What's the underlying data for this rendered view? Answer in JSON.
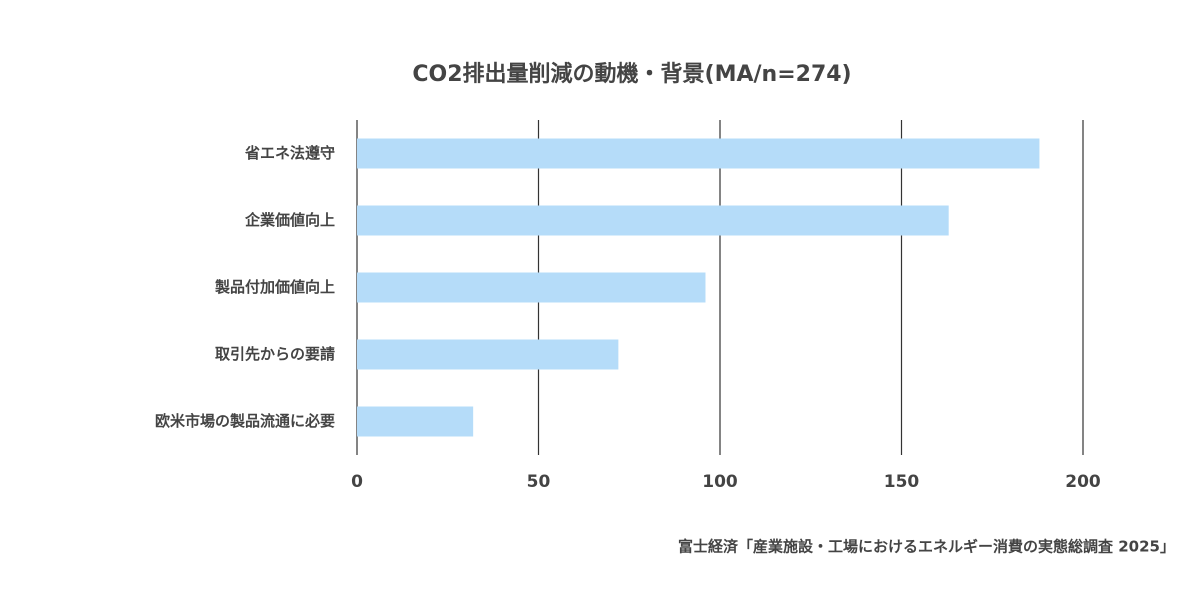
{
  "chart_data": {
    "type": "bar",
    "orientation": "horizontal",
    "title": "CO2排出量削減の動機・背景(MA/n=274)",
    "categories": [
      "省エネ法遵守",
      "企業価値向上",
      "製品付加価値向上",
      "取引先からの要請",
      "欧米市場の製品流通に必要"
    ],
    "values": [
      188,
      163,
      96,
      72,
      32
    ],
    "color": "#b5dcf9",
    "xlim": [
      0,
      200
    ],
    "xticks": [
      0,
      50,
      100,
      150,
      200
    ],
    "grid": true,
    "source": "富士経済「産業施設・工場におけるエネルギー消費の実態総調査 2025」"
  }
}
